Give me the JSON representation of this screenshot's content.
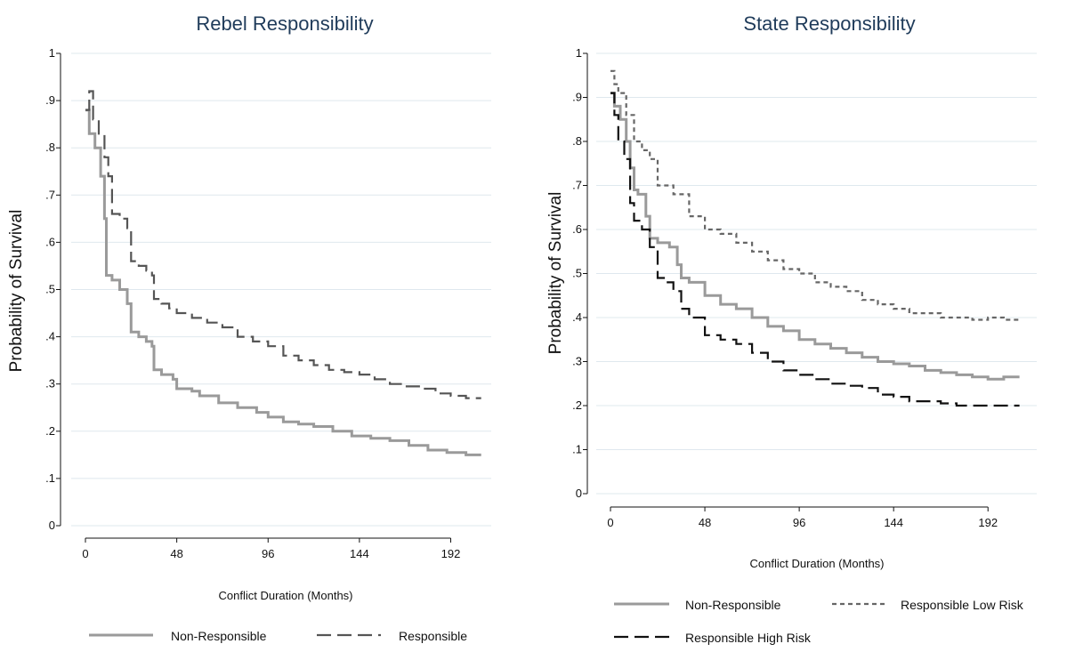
{
  "chart_data": [
    {
      "id": "rebel",
      "type": "line",
      "step": true,
      "title": "Rebel Responsibility",
      "xlabel": "Conflict Duration (Months)",
      "ylabel": "Probability of Survival",
      "xticks": [
        0,
        48,
        96,
        144,
        192
      ],
      "yticks": [
        0,
        0.1,
        0.2,
        0.3,
        0.4,
        0.5,
        0.6,
        0.7,
        0.8,
        0.9,
        1
      ],
      "ytick_labels": [
        "0",
        ".1",
        ".2",
        ".3",
        ".4",
        ".5",
        ".6",
        ".7",
        ".8",
        ".9",
        "1"
      ],
      "xlim": [
        0,
        210
      ],
      "ylim": [
        0,
        1
      ],
      "grid": true,
      "legend_position": "bottom",
      "series": [
        {
          "name": "Non-Responsible",
          "color": "#9a9a9a",
          "dash": "solid",
          "x": [
            0,
            2,
            5,
            8,
            10,
            11,
            14,
            18,
            22,
            24,
            28,
            32,
            35,
            36,
            40,
            46,
            48,
            56,
            60,
            70,
            80,
            90,
            96,
            104,
            112,
            120,
            130,
            140,
            150,
            160,
            170,
            180,
            190,
            200,
            208
          ],
          "y": [
            0.88,
            0.83,
            0.8,
            0.74,
            0.65,
            0.53,
            0.52,
            0.5,
            0.47,
            0.41,
            0.4,
            0.39,
            0.38,
            0.33,
            0.32,
            0.31,
            0.29,
            0.285,
            0.275,
            0.26,
            0.25,
            0.24,
            0.23,
            0.22,
            0.215,
            0.21,
            0.2,
            0.19,
            0.185,
            0.18,
            0.17,
            0.16,
            0.155,
            0.15,
            0.15
          ]
        },
        {
          "name": "Responsible",
          "color": "#555555",
          "dash": "long-dash",
          "x": [
            0,
            2,
            4,
            7,
            10,
            12,
            14,
            18,
            22,
            24,
            28,
            32,
            35,
            36,
            40,
            44,
            48,
            56,
            64,
            72,
            80,
            88,
            96,
            104,
            112,
            120,
            128,
            136,
            144,
            152,
            160,
            168,
            176,
            184,
            192,
            200,
            208
          ],
          "y": [
            0.88,
            0.92,
            0.86,
            0.83,
            0.78,
            0.74,
            0.66,
            0.65,
            0.63,
            0.56,
            0.55,
            0.54,
            0.53,
            0.48,
            0.47,
            0.46,
            0.45,
            0.44,
            0.43,
            0.42,
            0.4,
            0.39,
            0.38,
            0.36,
            0.35,
            0.34,
            0.33,
            0.325,
            0.32,
            0.31,
            0.3,
            0.295,
            0.29,
            0.28,
            0.275,
            0.27,
            0.27
          ]
        }
      ]
    },
    {
      "id": "state",
      "type": "line",
      "step": true,
      "title": "State Responsibility",
      "xlabel": "Conflict Duration (Months)",
      "ylabel": "Probability of Survival",
      "xticks": [
        0,
        48,
        96,
        144,
        192
      ],
      "yticks": [
        0,
        0.1,
        0.2,
        0.3,
        0.4,
        0.5,
        0.6,
        0.7,
        0.8,
        0.9,
        1
      ],
      "ytick_labels": [
        "0",
        ".1",
        ".2",
        ".3",
        ".4",
        ".5",
        ".6",
        ".7",
        ".8",
        ".9",
        "1"
      ],
      "xlim": [
        0,
        210
      ],
      "ylim": [
        0,
        1
      ],
      "grid": true,
      "legend_position": "bottom",
      "series": [
        {
          "name": "Non-Responsible",
          "color": "#9a9a9a",
          "dash": "solid",
          "x": [
            0,
            2,
            5,
            8,
            10,
            12,
            14,
            18,
            20,
            24,
            30,
            34,
            36,
            40,
            48,
            56,
            64,
            72,
            80,
            88,
            96,
            104,
            112,
            120,
            128,
            136,
            144,
            152,
            160,
            168,
            176,
            184,
            192,
            200,
            208
          ],
          "y": [
            0.91,
            0.88,
            0.85,
            0.8,
            0.74,
            0.69,
            0.68,
            0.63,
            0.58,
            0.57,
            0.56,
            0.52,
            0.49,
            0.48,
            0.45,
            0.43,
            0.42,
            0.4,
            0.38,
            0.37,
            0.35,
            0.34,
            0.33,
            0.32,
            0.31,
            0.3,
            0.295,
            0.29,
            0.28,
            0.275,
            0.27,
            0.265,
            0.26,
            0.265,
            0.265
          ]
        },
        {
          "name": "Responsible Low Risk",
          "color": "#666666",
          "dash": "short-dash",
          "x": [
            0,
            2,
            4,
            8,
            12,
            16,
            20,
            24,
            32,
            40,
            48,
            56,
            64,
            72,
            80,
            88,
            96,
            104,
            112,
            120,
            128,
            136,
            144,
            152,
            160,
            168,
            176,
            184,
            192,
            200,
            208
          ],
          "y": [
            0.96,
            0.93,
            0.91,
            0.86,
            0.8,
            0.78,
            0.76,
            0.7,
            0.68,
            0.63,
            0.6,
            0.59,
            0.57,
            0.55,
            0.53,
            0.51,
            0.5,
            0.48,
            0.47,
            0.46,
            0.44,
            0.43,
            0.42,
            0.41,
            0.41,
            0.4,
            0.4,
            0.395,
            0.4,
            0.395,
            0.4
          ]
        },
        {
          "name": "Responsible High Risk",
          "color": "#111111",
          "dash": "long-dash",
          "x": [
            0,
            2,
            4,
            7,
            10,
            12,
            16,
            20,
            24,
            28,
            32,
            36,
            40,
            48,
            56,
            64,
            72,
            80,
            88,
            96,
            104,
            112,
            120,
            128,
            136,
            144,
            152,
            160,
            168,
            176,
            184,
            192,
            200,
            208
          ],
          "y": [
            0.91,
            0.86,
            0.8,
            0.76,
            0.66,
            0.62,
            0.6,
            0.56,
            0.49,
            0.48,
            0.46,
            0.42,
            0.4,
            0.36,
            0.35,
            0.34,
            0.32,
            0.3,
            0.28,
            0.27,
            0.26,
            0.25,
            0.245,
            0.24,
            0.225,
            0.22,
            0.21,
            0.21,
            0.205,
            0.2,
            0.2,
            0.2,
            0.2,
            0.2
          ]
        }
      ]
    }
  ]
}
